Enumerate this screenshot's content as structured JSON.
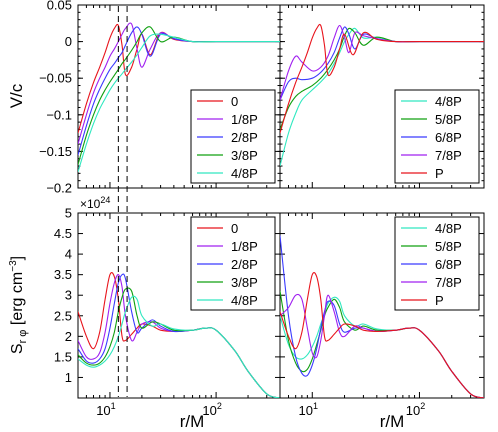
{
  "figure": {
    "ylabel_top": "V/c",
    "ylabel_bottom_main": "S",
    "ylabel_bottom_sub": "r φ",
    "ylabel_bottom_unit_pre": "[erg cm",
    "ylabel_bottom_unit_sup": "−3",
    "ylabel_bottom_unit_post": "]",
    "xlabel": "r/M",
    "offset_base": "×10",
    "offset_exp": "24",
    "x_tick_labels": [
      {
        "base": "10",
        "exp": "1",
        "value": 10
      },
      {
        "base": "10",
        "exp": "2",
        "value": 100
      }
    ],
    "top_y_ticks": [
      0.05,
      0,
      -0.05,
      -0.1,
      -0.15,
      -0.2
    ],
    "top_y_tick_labels": [
      "0.05",
      "0",
      "−0.05",
      "−0.1",
      "−0.15",
      "−0.2"
    ],
    "bottom_y_ticks": [
      1,
      1.5,
      2,
      2.5,
      3,
      3.5,
      4,
      4.5,
      5
    ],
    "bottom_y_tick_labels": [
      "1",
      "1.5",
      "2",
      "2.5",
      "3",
      "3.5",
      "4",
      "4.5",
      "5"
    ],
    "dashed_lines_x": [
      12,
      14.5
    ],
    "colors": {
      "0": "#e8141c",
      "1/8P": "#a020f0",
      "2/8P": "#3a3aff",
      "3/8P": "#10a010",
      "4/8P": "#30e8c0",
      "5/8P": "#10a010",
      "6/8P": "#3a3aff",
      "7/8P": "#a020f0",
      "P": "#e8141c"
    }
  },
  "chart_data": [
    {
      "type": "line",
      "panel": "top-left",
      "ylabel": "V/c",
      "xscale": "log",
      "xlim": [
        5,
        400
      ],
      "ylim": [
        -0.2,
        0.05
      ],
      "legend": "bottom-right",
      "series": [
        {
          "name": "0",
          "x": [
            5,
            6,
            7,
            8,
            9,
            10,
            11,
            12,
            13,
            14,
            16,
            18,
            20,
            24,
            30,
            40,
            60,
            100,
            400
          ],
          "y": [
            -0.125,
            -0.085,
            -0.056,
            -0.035,
            -0.015,
            0.005,
            0.018,
            0.022,
            -0.005,
            -0.045,
            -0.035,
            -0.01,
            0.01,
            -0.018,
            0.012,
            0.003,
            0.0,
            0.0,
            0.0
          ]
        },
        {
          "name": "1/8P",
          "x": [
            5,
            6,
            7,
            8,
            9,
            10,
            11,
            12,
            13,
            14,
            16,
            18,
            20,
            24,
            30,
            40,
            60,
            100,
            400
          ],
          "y": [
            -0.14,
            -0.1,
            -0.07,
            -0.05,
            -0.035,
            -0.02,
            -0.01,
            0.0,
            0.01,
            0.018,
            0.024,
            -0.01,
            -0.035,
            -0.01,
            0.012,
            0.004,
            0.0,
            0.0,
            0.0
          ]
        },
        {
          "name": "2/8P",
          "x": [
            5,
            6,
            7,
            8,
            9,
            10,
            11,
            12,
            13,
            14,
            16,
            18,
            20,
            24,
            30,
            40,
            60,
            100,
            400
          ],
          "y": [
            -0.155,
            -0.115,
            -0.085,
            -0.065,
            -0.05,
            -0.038,
            -0.03,
            -0.022,
            -0.015,
            -0.005,
            0.012,
            0.02,
            0.01,
            -0.02,
            0.01,
            0.004,
            0.0,
            0.0,
            0.0
          ]
        },
        {
          "name": "3/8P",
          "x": [
            5,
            6,
            7,
            8,
            9,
            10,
            11,
            12,
            13,
            14,
            16,
            18,
            20,
            24,
            30,
            40,
            60,
            100,
            400
          ],
          "y": [
            -0.168,
            -0.128,
            -0.1,
            -0.08,
            -0.066,
            -0.055,
            -0.046,
            -0.038,
            -0.03,
            -0.024,
            -0.012,
            0.0,
            0.012,
            0.02,
            0.0,
            0.006,
            0.0,
            0.0,
            0.0
          ]
        },
        {
          "name": "4/8P",
          "x": [
            5,
            6,
            7,
            8,
            9,
            10,
            11,
            12,
            13,
            14,
            16,
            18,
            20,
            24,
            30,
            40,
            60,
            100,
            400
          ],
          "y": [
            -0.178,
            -0.14,
            -0.112,
            -0.092,
            -0.078,
            -0.066,
            -0.057,
            -0.05,
            -0.044,
            -0.038,
            -0.028,
            -0.018,
            -0.008,
            0.008,
            0.01,
            0.006,
            0.0,
            0.0,
            0.0
          ]
        }
      ]
    },
    {
      "type": "line",
      "panel": "top-right",
      "xscale": "log",
      "xlim": [
        5,
        400
      ],
      "ylim": [
        -0.2,
        0.05
      ],
      "legend": "bottom-right",
      "series": [
        {
          "name": "4/8P",
          "x": [
            5,
            6,
            7,
            8,
            10,
            12,
            14,
            16,
            18,
            20,
            22,
            25,
            30,
            40,
            60,
            100,
            400
          ],
          "y": [
            -0.17,
            -0.125,
            -0.098,
            -0.08,
            -0.066,
            -0.055,
            -0.044,
            -0.03,
            -0.015,
            0.0,
            0.01,
            0.018,
            0.005,
            0.006,
            0.0,
            0.0,
            0.0
          ]
        },
        {
          "name": "5/8P",
          "x": [
            5,
            6,
            7,
            8,
            10,
            12,
            14,
            16,
            18,
            20,
            22,
            25,
            30,
            40,
            60,
            100,
            400
          ],
          "y": [
            -0.12,
            -0.09,
            -0.075,
            -0.068,
            -0.06,
            -0.05,
            -0.038,
            -0.025,
            -0.01,
            0.008,
            0.018,
            0.012,
            -0.005,
            0.006,
            0.0,
            0.0,
            0.0
          ]
        },
        {
          "name": "6/8P",
          "x": [
            5,
            6,
            7,
            8,
            10,
            12,
            14,
            16,
            18,
            20,
            22,
            25,
            30,
            40,
            60,
            100,
            400
          ],
          "y": [
            -0.08,
            -0.055,
            -0.05,
            -0.052,
            -0.05,
            -0.042,
            -0.03,
            -0.015,
            0.005,
            0.02,
            0.01,
            -0.01,
            0.01,
            0.004,
            0.0,
            0.0,
            0.0
          ]
        },
        {
          "name": "7/8P",
          "x": [
            5,
            6,
            7,
            8,
            10,
            12,
            14,
            16,
            18,
            20,
            22,
            25,
            30,
            40,
            60,
            100,
            400
          ],
          "y": [
            -0.08,
            -0.04,
            -0.02,
            -0.028,
            -0.04,
            -0.035,
            -0.02,
            0.005,
            0.022,
            0.005,
            -0.015,
            0.012,
            0.008,
            0.004,
            0.0,
            0.0,
            0.0
          ]
        },
        {
          "name": "P",
          "x": [
            5,
            6,
            7,
            8,
            9,
            10,
            11,
            12,
            13,
            14,
            16,
            18,
            20,
            24,
            30,
            40,
            60,
            100,
            400
          ],
          "y": [
            -0.125,
            -0.085,
            -0.056,
            -0.035,
            -0.015,
            0.005,
            0.018,
            0.022,
            -0.005,
            -0.045,
            -0.035,
            -0.01,
            0.01,
            -0.018,
            0.012,
            0.003,
            0.0,
            0.0,
            0.0
          ]
        }
      ]
    },
    {
      "type": "line",
      "panel": "bottom-left",
      "ylabel": "S r φ [erg cm −3]",
      "xlabel": "r/M",
      "xscale": "log",
      "xlim": [
        5,
        400
      ],
      "ylim": [
        0.5,
        5.0
      ],
      "legend": "top-right",
      "series": [
        {
          "name": "0",
          "x": [
            5,
            6,
            7,
            8,
            9,
            10,
            11,
            12,
            13,
            14,
            16,
            18,
            20,
            25,
            30,
            40,
            60,
            80,
            100,
            150,
            200,
            300,
            400
          ],
          "y": [
            2.6,
            2.0,
            1.7,
            2.1,
            2.9,
            3.5,
            3.45,
            2.9,
            2.0,
            1.9,
            2.05,
            2.2,
            2.3,
            2.25,
            2.15,
            2.12,
            2.15,
            2.2,
            2.15,
            1.65,
            1.15,
            0.6,
            0.5
          ]
        },
        {
          "name": "1/8P",
          "x": [
            5,
            6,
            7,
            8,
            9,
            10,
            11,
            12,
            13,
            14,
            16,
            18,
            20,
            25,
            30,
            40,
            60,
            80,
            100,
            150,
            200,
            300,
            400
          ],
          "y": [
            1.9,
            1.5,
            1.45,
            1.6,
            2.1,
            2.8,
            3.3,
            3.5,
            3.2,
            2.5,
            1.9,
            2.1,
            2.3,
            2.35,
            2.2,
            2.12,
            2.15,
            2.2,
            2.15,
            1.65,
            1.15,
            0.6,
            0.5
          ]
        },
        {
          "name": "2/8P",
          "x": [
            5,
            6,
            7,
            8,
            9,
            10,
            11,
            12,
            13,
            14,
            16,
            18,
            20,
            25,
            30,
            40,
            60,
            80,
            100,
            150,
            200,
            300,
            400
          ],
          "y": [
            1.7,
            1.4,
            1.35,
            1.45,
            1.7,
            2.2,
            2.8,
            3.3,
            3.5,
            3.4,
            2.6,
            2.1,
            2.2,
            2.4,
            2.25,
            2.12,
            2.15,
            2.2,
            2.15,
            1.65,
            1.15,
            0.6,
            0.5
          ]
        },
        {
          "name": "3/8P",
          "x": [
            5,
            6,
            7,
            8,
            9,
            10,
            11,
            12,
            13,
            14,
            16,
            18,
            20,
            25,
            30,
            40,
            60,
            80,
            100,
            150,
            200,
            300,
            400
          ],
          "y": [
            1.55,
            1.35,
            1.3,
            1.35,
            1.5,
            1.75,
            2.1,
            2.6,
            2.95,
            3.15,
            3.1,
            2.5,
            2.2,
            2.35,
            2.3,
            2.15,
            2.15,
            2.2,
            2.15,
            1.65,
            1.15,
            0.6,
            0.5
          ]
        },
        {
          "name": "4/8P",
          "x": [
            5,
            6,
            7,
            8,
            9,
            10,
            11,
            12,
            13,
            14,
            16,
            18,
            20,
            25,
            30,
            40,
            60,
            80,
            100,
            150,
            200,
            300,
            400
          ],
          "y": [
            1.45,
            1.3,
            1.25,
            1.3,
            1.4,
            1.55,
            1.75,
            2.0,
            2.3,
            2.6,
            2.95,
            2.9,
            2.5,
            2.25,
            2.3,
            2.18,
            2.15,
            2.2,
            2.15,
            1.65,
            1.15,
            0.6,
            0.5
          ]
        }
      ]
    },
    {
      "type": "line",
      "panel": "bottom-right",
      "xlabel": "r/M",
      "xscale": "log",
      "xlim": [
        5,
        400
      ],
      "ylim": [
        0.5,
        5.0
      ],
      "legend": "top-right",
      "series": [
        {
          "name": "4/8P",
          "x": [
            5,
            6,
            7,
            8,
            9,
            10,
            11,
            12,
            13,
            14,
            16,
            18,
            20,
            25,
            30,
            40,
            60,
            80,
            100,
            150,
            200,
            300,
            400
          ],
          "y": [
            2.5,
            1.8,
            1.5,
            1.45,
            1.55,
            1.75,
            2.0,
            2.3,
            2.55,
            2.8,
            2.95,
            2.85,
            2.5,
            2.25,
            2.3,
            2.18,
            2.15,
            2.2,
            2.15,
            1.65,
            1.15,
            0.6,
            0.5
          ]
        },
        {
          "name": "5/8P",
          "x": [
            5,
            6,
            7,
            8,
            9,
            10,
            11,
            12,
            13,
            14,
            16,
            18,
            20,
            25,
            30,
            40,
            60,
            80,
            100,
            150,
            200,
            300,
            400
          ],
          "y": [
            3.1,
            1.9,
            1.35,
            1.15,
            1.2,
            1.45,
            1.8,
            2.15,
            2.5,
            2.7,
            2.9,
            2.7,
            2.35,
            2.15,
            2.25,
            2.15,
            2.15,
            2.2,
            2.15,
            1.65,
            1.15,
            0.6,
            0.5
          ]
        },
        {
          "name": "6/8P",
          "x": [
            5,
            6,
            7,
            8,
            9,
            10,
            11,
            12,
            13,
            14,
            16,
            18,
            20,
            25,
            30,
            40,
            60,
            80,
            100,
            150,
            200,
            300,
            400
          ],
          "y": [
            4.45,
            2.5,
            1.5,
            1.1,
            1.05,
            1.3,
            1.7,
            2.2,
            2.6,
            2.85,
            2.75,
            2.3,
            2.1,
            2.2,
            2.2,
            2.12,
            2.15,
            2.2,
            2.15,
            1.65,
            1.15,
            0.6,
            0.5
          ]
        },
        {
          "name": "7/8P",
          "x": [
            5,
            6,
            7,
            8,
            9,
            10,
            11,
            12,
            13,
            14,
            16,
            18,
            20,
            25,
            30,
            40,
            60,
            80,
            100,
            150,
            200,
            300,
            400
          ],
          "y": [
            2.5,
            2.7,
            3.0,
            2.9,
            2.2,
            1.6,
            1.5,
            1.9,
            2.5,
            3.0,
            2.6,
            2.1,
            2.0,
            2.25,
            2.2,
            2.12,
            2.15,
            2.2,
            2.15,
            1.65,
            1.15,
            0.6,
            0.5
          ]
        },
        {
          "name": "P",
          "x": [
            5,
            6,
            7,
            8,
            9,
            10,
            11,
            12,
            13,
            14,
            16,
            18,
            20,
            25,
            30,
            40,
            60,
            80,
            100,
            150,
            200,
            300,
            400
          ],
          "y": [
            2.6,
            2.0,
            1.7,
            2.1,
            2.9,
            3.5,
            3.45,
            2.9,
            2.0,
            1.9,
            2.05,
            2.2,
            2.3,
            2.25,
            2.15,
            2.12,
            2.15,
            2.2,
            2.15,
            1.65,
            1.15,
            0.6,
            0.5
          ]
        }
      ]
    }
  ]
}
